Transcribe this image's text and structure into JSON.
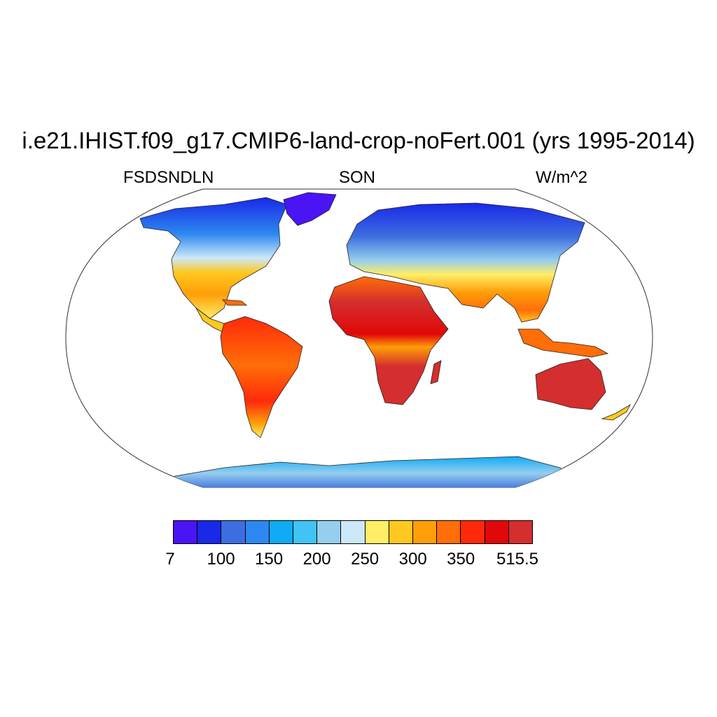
{
  "title": "i.e21.IHIST.f09_g17.CMIP6-land-crop-noFert.001 (yrs 1995-2014)",
  "variable": "FSDSNDLN",
  "season": "SON",
  "units": "W/m^2",
  "colorbar": {
    "colors": [
      "#4a14f5",
      "#1a28e8",
      "#3d6ee0",
      "#2c88f0",
      "#10aaf5",
      "#40c4f5",
      "#95ceee",
      "#cce8f8",
      "#ffee66",
      "#ffc820",
      "#ff9e08",
      "#ff6e08",
      "#ff2a0a",
      "#e00808",
      "#d42e2e"
    ],
    "tick_labels": [
      "7",
      "100",
      "150",
      "200",
      "250",
      "300",
      "350",
      "515.5"
    ],
    "tick_boundary_index": [
      0,
      2,
      4,
      6,
      8,
      10,
      12,
      15
    ]
  }
}
